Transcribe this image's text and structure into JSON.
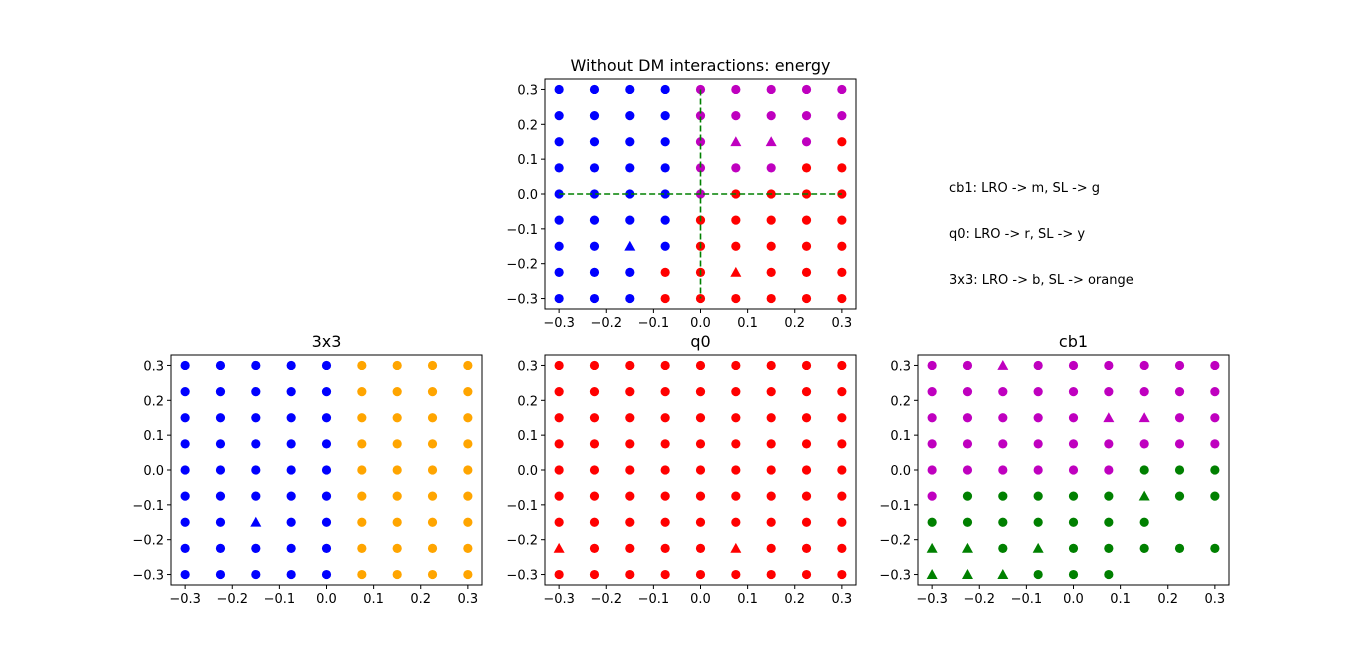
{
  "chart_data": [
    {
      "type": "scatter",
      "title": "Without DM interactions: energy",
      "xlim": [
        -0.33,
        0.33
      ],
      "ylim": [
        -0.33,
        0.33
      ],
      "xticks": [
        -0.3,
        -0.2,
        -0.1,
        0.0,
        0.1,
        0.2,
        0.3
      ],
      "xtick_labels": [
        "−0.3",
        "−0.2",
        "−0.1",
        "0.0",
        "0.1",
        "0.2",
        "0.3"
      ],
      "yticks": [
        -0.3,
        -0.2,
        -0.1,
        0.0,
        0.1,
        0.2,
        0.3
      ],
      "ytick_labels": [
        "−0.3",
        "−0.2",
        "−0.1",
        "0.0",
        "0.1",
        "0.2",
        "0.3"
      ],
      "grid_values": [
        -0.3,
        -0.225,
        -0.15,
        -0.075,
        0.0,
        0.075,
        0.15,
        0.225,
        0.3
      ],
      "colors": {
        "b": "#0000ff",
        "r": "#ff0000",
        "m": "#bf00bf",
        "o": "#ffa500",
        "g": "#008000"
      },
      "rows": [
        {
          "y": 0.3,
          "cells": [
            "b",
            "b",
            "b",
            "b",
            "m",
            "m",
            "m",
            "m",
            "m"
          ]
        },
        {
          "y": 0.225,
          "cells": [
            "b",
            "b",
            "b",
            "b",
            "m",
            "m",
            "m",
            "m",
            "m"
          ]
        },
        {
          "y": 0.15,
          "cells": [
            "b",
            "b",
            "b",
            "b",
            "m",
            "m^",
            "m^",
            "m",
            "r"
          ]
        },
        {
          "y": 0.075,
          "cells": [
            "b",
            "b",
            "b",
            "b",
            "m",
            "m",
            "m",
            "r",
            "r"
          ]
        },
        {
          "y": 0.0,
          "cells": [
            "b",
            "b",
            "b",
            "b",
            "m",
            "r",
            "r",
            "r",
            "r"
          ]
        },
        {
          "y": -0.075,
          "cells": [
            "b",
            "b",
            "b",
            "b",
            "r",
            "r",
            "r",
            "r",
            "r"
          ]
        },
        {
          "y": -0.15,
          "cells": [
            "b",
            "b",
            "b^",
            "b",
            "r",
            "r",
            "r",
            "r",
            "r"
          ]
        },
        {
          "y": -0.225,
          "cells": [
            "b",
            "b",
            "b",
            "r",
            "r",
            "r^",
            "r",
            "r",
            "r"
          ]
        },
        {
          "y": -0.3,
          "cells": [
            "b",
            "b",
            "b",
            "r",
            "r",
            "r",
            "r",
            "r",
            "r"
          ]
        }
      ],
      "reference_lines": {
        "color": "#008000",
        "style": "dashed",
        "x": 0.0,
        "y": 0.0
      }
    },
    {
      "type": "scatter",
      "title": "3x3",
      "xlim": [
        -0.33,
        0.33
      ],
      "ylim": [
        -0.33,
        0.33
      ],
      "xticks": [
        -0.3,
        -0.2,
        -0.1,
        0.0,
        0.1,
        0.2,
        0.3
      ],
      "xtick_labels": [
        "−0.3",
        "−0.2",
        "−0.1",
        "0.0",
        "0.1",
        "0.2",
        "0.3"
      ],
      "yticks": [
        -0.3,
        -0.2,
        -0.1,
        0.0,
        0.1,
        0.2,
        0.3
      ],
      "ytick_labels": [
        "−0.3",
        "−0.2",
        "−0.1",
        "0.0",
        "0.1",
        "0.2",
        "0.3"
      ],
      "grid_values": [
        -0.3,
        -0.225,
        -0.15,
        -0.075,
        0.0,
        0.075,
        0.15,
        0.225,
        0.3
      ],
      "colors": {
        "b": "#0000ff",
        "r": "#ff0000",
        "m": "#bf00bf",
        "o": "#ffa500",
        "g": "#008000"
      },
      "rows": [
        {
          "y": 0.3,
          "cells": [
            "b",
            "b",
            "b",
            "b",
            "b",
            "o",
            "o",
            "o",
            "o"
          ]
        },
        {
          "y": 0.225,
          "cells": [
            "b",
            "b",
            "b",
            "b",
            "b",
            "o",
            "o",
            "o",
            "o"
          ]
        },
        {
          "y": 0.15,
          "cells": [
            "b",
            "b",
            "b",
            "b",
            "b",
            "o",
            "o",
            "o",
            "o"
          ]
        },
        {
          "y": 0.075,
          "cells": [
            "b",
            "b",
            "b",
            "b",
            "b",
            "o",
            "o",
            "o",
            "o"
          ]
        },
        {
          "y": 0.0,
          "cells": [
            "b",
            "b",
            "b",
            "b",
            "b",
            "o",
            "o",
            "o",
            "o"
          ]
        },
        {
          "y": -0.075,
          "cells": [
            "b",
            "b",
            "b",
            "b",
            "b",
            "o",
            "o",
            "o",
            "o"
          ]
        },
        {
          "y": -0.15,
          "cells": [
            "b",
            "b",
            "b^",
            "b",
            "b",
            "o",
            "o",
            "o",
            "o"
          ]
        },
        {
          "y": -0.225,
          "cells": [
            "b",
            "b",
            "b",
            "b",
            "b",
            "o",
            "o",
            "o",
            "o"
          ]
        },
        {
          "y": -0.3,
          "cells": [
            "b",
            "b",
            "b",
            "b",
            "b",
            "o",
            "o",
            "o",
            "o"
          ]
        }
      ]
    },
    {
      "type": "scatter",
      "title": "q0",
      "xlim": [
        -0.33,
        0.33
      ],
      "ylim": [
        -0.33,
        0.33
      ],
      "xticks": [
        -0.3,
        -0.2,
        -0.1,
        0.0,
        0.1,
        0.2,
        0.3
      ],
      "xtick_labels": [
        "−0.3",
        "−0.2",
        "−0.1",
        "0.0",
        "0.1",
        "0.2",
        "0.3"
      ],
      "yticks": [
        -0.3,
        -0.2,
        -0.1,
        0.0,
        0.1,
        0.2,
        0.3
      ],
      "ytick_labels": [
        "−0.3",
        "−0.2",
        "−0.1",
        "0.0",
        "0.1",
        "0.2",
        "0.3"
      ],
      "grid_values": [
        -0.3,
        -0.225,
        -0.15,
        -0.075,
        0.0,
        0.075,
        0.15,
        0.225,
        0.3
      ],
      "colors": {
        "b": "#0000ff",
        "r": "#ff0000",
        "m": "#bf00bf",
        "o": "#ffa500",
        "g": "#008000"
      },
      "rows": [
        {
          "y": 0.3,
          "cells": [
            "r",
            "r",
            "r",
            "r",
            "r",
            "r",
            "r",
            "r",
            "r"
          ]
        },
        {
          "y": 0.225,
          "cells": [
            "r",
            "r",
            "r",
            "r",
            "r",
            "r",
            "r",
            "r",
            "r"
          ]
        },
        {
          "y": 0.15,
          "cells": [
            "r",
            "r",
            "r",
            "r",
            "r",
            "r",
            "r",
            "r",
            "r"
          ]
        },
        {
          "y": 0.075,
          "cells": [
            "r",
            "r",
            "r",
            "r",
            "r",
            "r",
            "r",
            "r",
            "r"
          ]
        },
        {
          "y": 0.0,
          "cells": [
            "r",
            "r",
            "r",
            "r",
            "r",
            "r",
            "r",
            "r",
            "r"
          ]
        },
        {
          "y": -0.075,
          "cells": [
            "r",
            "r",
            "r",
            "r",
            "r",
            "r",
            "r",
            "r",
            "r"
          ]
        },
        {
          "y": -0.15,
          "cells": [
            "r",
            "r",
            "r",
            "r",
            "r",
            "r",
            "r",
            "r",
            "r"
          ]
        },
        {
          "y": -0.225,
          "cells": [
            "r^",
            "r",
            "r",
            "r",
            "r",
            "r^",
            "r",
            "r",
            "r"
          ]
        },
        {
          "y": -0.3,
          "cells": [
            "r",
            "r",
            "r",
            "r",
            "r",
            "r",
            "r",
            "r",
            "r"
          ]
        }
      ]
    },
    {
      "type": "scatter",
      "title": "cb1",
      "xlim": [
        -0.33,
        0.33
      ],
      "ylim": [
        -0.33,
        0.33
      ],
      "xticks": [
        -0.3,
        -0.2,
        -0.1,
        0.0,
        0.1,
        0.2,
        0.3
      ],
      "xtick_labels": [
        "−0.3",
        "−0.2",
        "−0.1",
        "0.0",
        "0.1",
        "0.2",
        "0.3"
      ],
      "yticks": [
        -0.3,
        -0.2,
        -0.1,
        0.0,
        0.1,
        0.2,
        0.3
      ],
      "ytick_labels": [
        "−0.3",
        "−0.2",
        "−0.1",
        "0.0",
        "0.1",
        "0.2",
        "0.3"
      ],
      "grid_values": [
        -0.3,
        -0.225,
        -0.15,
        -0.075,
        0.0,
        0.075,
        0.15,
        0.225,
        0.3
      ],
      "colors": {
        "b": "#0000ff",
        "r": "#ff0000",
        "m": "#bf00bf",
        "o": "#ffa500",
        "g": "#008000"
      },
      "rows": [
        {
          "y": 0.3,
          "cells": [
            "m",
            "m",
            "m^",
            "m",
            "m",
            "m",
            "m",
            "m",
            "m"
          ]
        },
        {
          "y": 0.225,
          "cells": [
            "m",
            "m",
            "m",
            "m",
            "m",
            "m",
            "m",
            "m",
            "m"
          ]
        },
        {
          "y": 0.15,
          "cells": [
            "m",
            "m",
            "m",
            "m",
            "m",
            "m^",
            "m^",
            "m",
            "m"
          ]
        },
        {
          "y": 0.075,
          "cells": [
            "m",
            "m",
            "m",
            "m",
            "m",
            "m",
            "m",
            "m",
            "m"
          ]
        },
        {
          "y": 0.0,
          "cells": [
            "m",
            "m",
            "m",
            "m",
            "m",
            "m",
            "g",
            "g",
            "g"
          ]
        },
        {
          "y": -0.075,
          "cells": [
            "m",
            "g",
            "g",
            "g",
            "g",
            "g",
            "g^",
            "g",
            "g"
          ]
        },
        {
          "y": -0.15,
          "cells": [
            "g",
            "g",
            "g",
            "g",
            "g",
            "g",
            "g",
            "",
            ""
          ]
        },
        {
          "y": -0.225,
          "cells": [
            "g^",
            "g^",
            "g",
            "g^",
            "g",
            "g",
            "g",
            "g",
            "g"
          ]
        },
        {
          "y": -0.3,
          "cells": [
            "g^",
            "g^",
            "g^",
            "g",
            "g",
            "g",
            "",
            "",
            ""
          ]
        }
      ]
    }
  ],
  "notes": [
    "cb1: LRO -> m, SL -> g",
    "q0: LRO -> r, SL -> y",
    "3x3: LRO -> b, SL -> orange"
  ]
}
